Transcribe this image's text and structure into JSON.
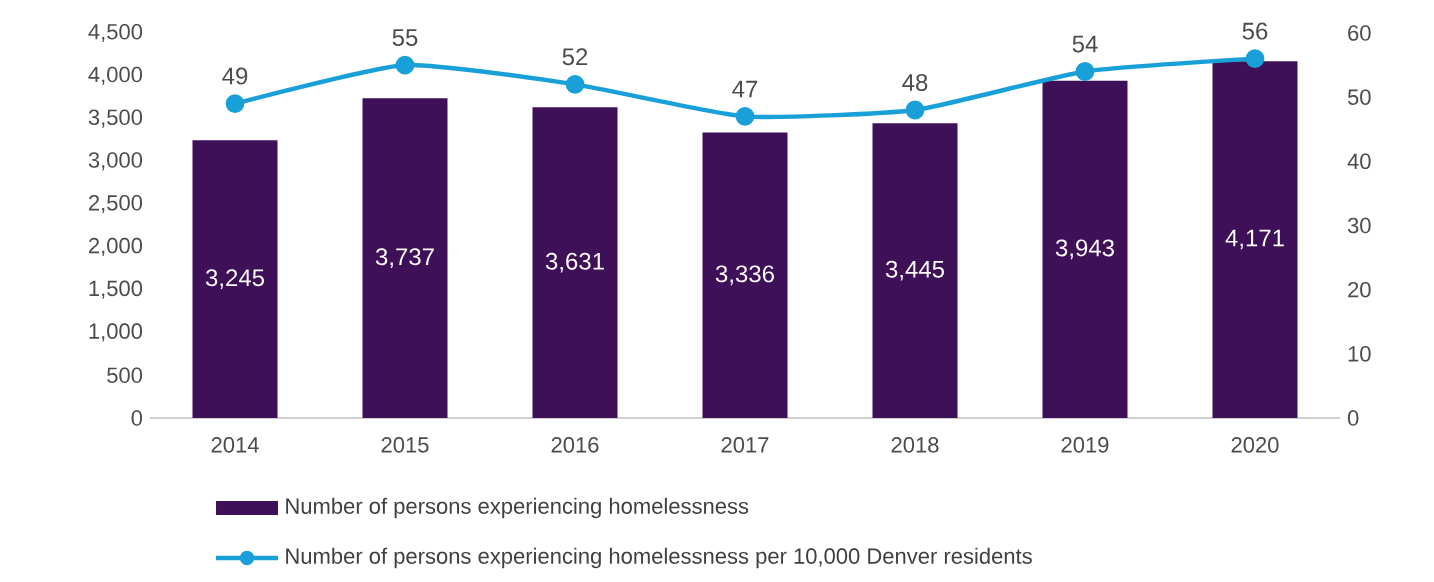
{
  "chart_data": {
    "type": "bar",
    "categories": [
      "2014",
      "2015",
      "2016",
      "2017",
      "2018",
      "2019",
      "2020"
    ],
    "series": [
      {
        "name": "Number of persons experiencing homelessness",
        "color": "#3e1058",
        "values": [
          3245,
          3737,
          3631,
          3336,
          3445,
          3943,
          4171
        ],
        "value_labels": [
          "3,245",
          "3,737",
          "3,631",
          "3,336",
          "3,445",
          "3,943",
          "4,171"
        ]
      },
      {
        "name": "Number of persons experiencing homelessness per 10,000 Denver residents",
        "type": "line",
        "axis": "y2",
        "color": "#1aa0d8",
        "marker": "circle",
        "values": [
          49,
          55,
          52,
          47,
          48,
          54,
          56
        ],
        "value_labels": [
          "49",
          "55",
          "52",
          "47",
          "48",
          "54",
          "56"
        ]
      }
    ],
    "ylim": [
      0,
      4500
    ],
    "yticks": [
      0,
      500,
      {
        "value": 1000,
        "label": "1,000"
      },
      {
        "value": 1500,
        "label": "1,500"
      },
      {
        "value": 2000,
        "label": "2,000"
      },
      {
        "value": 2500,
        "label": "2,500"
      },
      {
        "value": 3000,
        "label": "3,000"
      },
      {
        "value": 3500,
        "label": "3,500"
      },
      {
        "value": 4000,
        "label": "4,000"
      },
      {
        "value": 4500,
        "label": "4,500"
      }
    ],
    "y2lim": [
      0,
      60
    ],
    "y2ticks": [
      0,
      10,
      20,
      30,
      40,
      50,
      60
    ],
    "legend": "bottom",
    "grid": false
  }
}
